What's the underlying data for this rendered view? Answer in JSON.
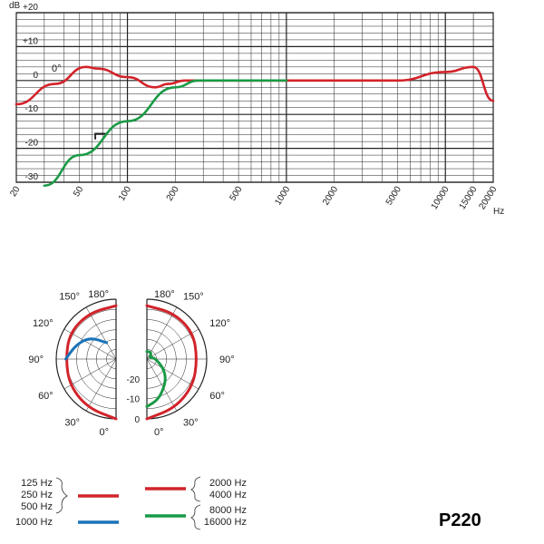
{
  "model": "P220",
  "freq_chart": {
    "y_unit": "dB",
    "x_unit": "Hz",
    "y_ticks": [
      "+20",
      "+10",
      "0",
      "-10",
      "-20",
      "-30"
    ],
    "x_ticks": [
      "20",
      "50",
      "100",
      "200",
      "500",
      "1000",
      "2000",
      "5000",
      "10000",
      "15000",
      "20000"
    ],
    "curve_label": "0°",
    "filter_symbol": "⌐"
  },
  "polar": {
    "left_angles": [
      "180°",
      "150°",
      "120°",
      "90°",
      "60°",
      "30°",
      "0°"
    ],
    "right_angles": [
      "180°",
      "150°",
      "120°",
      "90°",
      "60°",
      "30°",
      "0°"
    ],
    "ring_labels": [
      "-20",
      "-10",
      "0"
    ]
  },
  "legend": {
    "left": {
      "red_labels": [
        "125 Hz",
        "250 Hz",
        "500 Hz"
      ],
      "blue_label": "1000 Hz"
    },
    "right": {
      "red_labels": [
        "2000 Hz",
        "4000 Hz"
      ],
      "green_labels": [
        "8000 Hz",
        "16000 Hz"
      ]
    }
  },
  "colors": {
    "red": "#d2232a",
    "green": "#1a9a46",
    "blue": "#1b73b8",
    "grid": "#222222"
  },
  "chart_data": [
    {
      "type": "line",
      "x_scale": "log",
      "xlim": [
        20,
        20000
      ],
      "ylim": [
        -30,
        20
      ],
      "xlabel": "Hz",
      "ylabel": "dB",
      "grid": true,
      "series": [
        {
          "color": "#d2232a",
          "points": [
            [
              20,
              -7
            ],
            [
              35,
              -1
            ],
            [
              55,
              4
            ],
            [
              65,
              3.5
            ],
            [
              100,
              1
            ],
            [
              150,
              -2
            ],
            [
              180,
              -1
            ],
            [
              230,
              0
            ],
            [
              1000,
              0
            ],
            [
              5000,
              0
            ],
            [
              10000,
              2.5
            ],
            [
              15000,
              4
            ],
            [
              20000,
              -6
            ]
          ]
        },
        {
          "color": "#1a9a46",
          "points": [
            [
              30,
              -31
            ],
            [
              50,
              -22
            ],
            [
              100,
              -12
            ],
            [
              200,
              -2
            ],
            [
              280,
              0
            ],
            [
              1000,
              0
            ]
          ]
        }
      ]
    },
    {
      "type": "polar",
      "ring_ticks_db": [
        0,
        -10,
        -20
      ],
      "series": [
        {
          "name": "125 Hz / 250 Hz / 500 Hz",
          "color": "#d2232a",
          "points": [
            [
              0,
              0
            ],
            [
              30,
              -0.5
            ],
            [
              60,
              -1
            ],
            [
              90,
              -1.5
            ],
            [
              120,
              -1
            ],
            [
              150,
              -1
            ],
            [
              180,
              -1
            ]
          ]
        },
        {
          "name": "1000 Hz",
          "color": "#1b73b8",
          "points": [
            [
              90,
              -1.5
            ],
            [
              110,
              -3
            ],
            [
              130,
              -5
            ],
            [
              150,
              -10
            ]
          ]
        },
        {
          "name": "2000 Hz / 4000 Hz",
          "color": "#d2232a",
          "points": [
            [
              0,
              0
            ],
            [
              30,
              -0.5
            ],
            [
              60,
              -1
            ],
            [
              90,
              -1.5
            ],
            [
              120,
              -1
            ],
            [
              150,
              -1
            ],
            [
              180,
              -1
            ]
          ]
        },
        {
          "name": "8000 Hz / 16000 Hz",
          "color": "#1a9a46",
          "points": [
            [
              0,
              -2
            ],
            [
              15,
              -3
            ],
            [
              30,
              -5
            ],
            [
              45,
              -7
            ],
            [
              60,
              -10
            ],
            [
              75,
              -14
            ],
            [
              90,
              -17
            ],
            [
              105,
              -20
            ],
            [
              120,
              -26
            ],
            [
              135,
              -20
            ],
            [
              150,
              -18
            ],
            [
              165,
              -18
            ],
            [
              180,
              -18
            ]
          ]
        }
      ]
    }
  ]
}
